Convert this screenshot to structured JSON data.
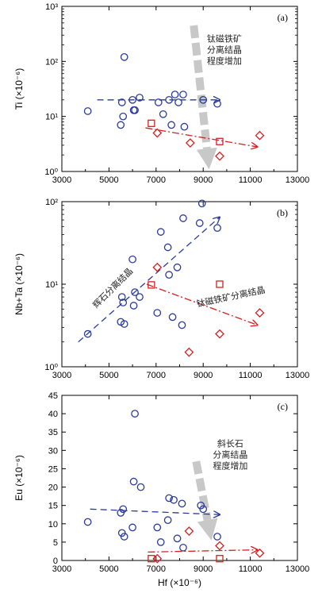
{
  "chart_data": [
    {
      "type": "scatter",
      "panel_label": "(a)",
      "ylabel": "Ti (×10⁻⁶)",
      "xlabel": "",
      "yscale": "log",
      "xlim": [
        3000,
        13000
      ],
      "ylim": [
        1,
        1000
      ],
      "yticks": [
        1,
        10,
        100,
        1000
      ],
      "ytick_labels": [
        "10⁰",
        "10¹",
        "10²",
        "10³"
      ],
      "xticks": [
        3000,
        5000,
        7000,
        9000,
        11000,
        13000
      ],
      "xtick_labels": [
        "3000",
        "5000",
        "7000",
        "9000",
        "11000",
        "13000"
      ],
      "colors": {
        "series1": "#2a3a9a",
        "series2": "#d42020",
        "series3": "#d42020",
        "fat_arrow": "#c8c8c8"
      },
      "series": [
        {
          "marker": "circle",
          "color": "#2a3a9a",
          "points": [
            [
              4100,
              12.5
            ],
            [
              5500,
              7
            ],
            [
              5550,
              18
            ],
            [
              5600,
              10
            ],
            [
              5650,
              120
            ],
            [
              6000,
              20
            ],
            [
              6050,
              13
            ],
            [
              6100,
              13
            ],
            [
              6300,
              22
            ],
            [
              7100,
              18
            ],
            [
              7300,
              11
            ],
            [
              7550,
              20
            ],
            [
              7650,
              7
            ],
            [
              7800,
              25
            ],
            [
              7950,
              18
            ],
            [
              8150,
              25
            ],
            [
              8200,
              6.5
            ],
            [
              9000,
              20
            ],
            [
              9600,
              17
            ]
          ]
        },
        {
          "marker": "square",
          "color": "#d42020",
          "points": [
            [
              6800,
              7.5
            ],
            [
              9700,
              3.5
            ]
          ]
        },
        {
          "marker": "diamond",
          "color": "#d42020",
          "points": [
            [
              7050,
              5
            ],
            [
              8450,
              3.3
            ],
            [
              9700,
              1.9
            ],
            [
              11400,
              4.5
            ]
          ]
        }
      ],
      "trend_lines": [
        {
          "style": "dashed",
          "color": "#2a3a9a",
          "from": [
            4500,
            20
          ],
          "to": [
            9700,
            20
          ]
        },
        {
          "style": "dashdot",
          "color": "#d42020",
          "from": [
            6550,
            6.2
          ],
          "to": [
            11300,
            2.8
          ]
        }
      ],
      "fat_arrow": {
        "from": [
          8600,
          450
        ],
        "to": [
          9250,
          1.1
        ]
      },
      "annotations": [
        {
          "lines": [
            "钛磁铁矿",
            "分离结晶",
            "程度增加"
          ],
          "x": 9900,
          "y": 230
        }
      ]
    },
    {
      "type": "scatter",
      "panel_label": "(b)",
      "ylabel": "Nb+Ta (×10⁻⁶)",
      "xlabel": "",
      "yscale": "log",
      "xlim": [
        3000,
        13000
      ],
      "ylim": [
        1,
        100
      ],
      "yticks": [
        1,
        10,
        100
      ],
      "ytick_labels": [
        "10⁰",
        "10¹",
        "10²"
      ],
      "xticks": [
        3000,
        5000,
        7000,
        9000,
        11000,
        13000
      ],
      "xtick_labels": [
        "3000",
        "5000",
        "7000",
        "9000",
        "11000",
        "13000"
      ],
      "colors": {
        "series1": "#2a3a9a",
        "series2": "#d42020",
        "series3": "#d42020"
      },
      "series": [
        {
          "marker": "circle",
          "color": "#2a3a9a",
          "points": [
            [
              4100,
              2.5
            ],
            [
              5500,
              3.5
            ],
            [
              5550,
              7
            ],
            [
              5600,
              6
            ],
            [
              5650,
              3.3
            ],
            [
              6000,
              20
            ],
            [
              6050,
              5.5
            ],
            [
              6100,
              8
            ],
            [
              6300,
              7
            ],
            [
              7050,
              4.5
            ],
            [
              7200,
              43
            ],
            [
              7500,
              28
            ],
            [
              7550,
              13
            ],
            [
              7700,
              4
            ],
            [
              7900,
              16
            ],
            [
              8100,
              3.2
            ],
            [
              8150,
              63
            ],
            [
              8850,
              55
            ],
            [
              8950,
              95
            ],
            [
              9600,
              48
            ]
          ]
        },
        {
          "marker": "square",
          "color": "#d42020",
          "points": [
            [
              6800,
              9.8
            ],
            [
              9700,
              10
            ]
          ]
        },
        {
          "marker": "diamond",
          "color": "#d42020",
          "points": [
            [
              7050,
              16
            ],
            [
              8400,
              1.5
            ],
            [
              9700,
              2.5
            ],
            [
              11400,
              4.5
            ]
          ]
        }
      ],
      "trend_lines": [
        {
          "style": "dashed",
          "color": "#2a3a9a",
          "from": [
            3700,
            2
          ],
          "to": [
            9700,
            65
          ]
        },
        {
          "style": "dashdot",
          "color": "#d42020",
          "from": [
            6600,
            10
          ],
          "to": [
            11300,
            3.2
          ]
        }
      ],
      "annotations": [
        {
          "lines": [
            "辉石分离结晶"
          ],
          "x": 5250,
          "y": 8.5,
          "rotate": -45
        },
        {
          "lines": [
            "钛磁铁矿分离结晶"
          ],
          "x": 10200,
          "y": 6.5,
          "rotate": -12
        }
      ]
    },
    {
      "type": "scatter",
      "panel_label": "(c)",
      "ylabel": "Eu (×10⁻⁶)",
      "xlabel": "Hf (×10⁻⁶)",
      "yscale": "linear",
      "xlim": [
        3000,
        13000
      ],
      "ylim": [
        0,
        45
      ],
      "yticks": [
        0,
        5,
        10,
        15,
        20,
        25,
        30,
        35,
        40,
        45
      ],
      "ytick_labels": [
        "0",
        "5",
        "10",
        "15",
        "20",
        "25",
        "30",
        "35",
        "40",
        "45"
      ],
      "xticks": [
        3000,
        5000,
        7000,
        9000,
        11000,
        13000
      ],
      "xtick_labels": [
        "3000",
        "5000",
        "7000",
        "9000",
        "11000",
        "13000"
      ],
      "colors": {
        "series1": "#2a3a9a",
        "series2": "#d42020",
        "series3": "#d42020",
        "fat_arrow": "#c8c8c8"
      },
      "series": [
        {
          "marker": "circle",
          "color": "#2a3a9a",
          "points": [
            [
              4100,
              10.5
            ],
            [
              5500,
              13
            ],
            [
              5550,
              7.5
            ],
            [
              5600,
              14
            ],
            [
              5650,
              6.5
            ],
            [
              6000,
              9
            ],
            [
              6050,
              21.5
            ],
            [
              6100,
              40
            ],
            [
              6350,
              20
            ],
            [
              7050,
              9
            ],
            [
              7200,
              5
            ],
            [
              7500,
              11
            ],
            [
              7550,
              17
            ],
            [
              7750,
              16.5
            ],
            [
              7900,
              6
            ],
            [
              8100,
              15.5
            ],
            [
              8150,
              3.5
            ],
            [
              8900,
              15
            ],
            [
              9000,
              14
            ],
            [
              9600,
              6.5
            ]
          ]
        },
        {
          "marker": "square",
          "color": "#d42020",
          "points": [
            [
              6800,
              0.5
            ],
            [
              9700,
              0.5
            ]
          ]
        },
        {
          "marker": "diamond",
          "color": "#d42020",
          "points": [
            [
              7050,
              0.5
            ],
            [
              8400,
              8
            ],
            [
              9700,
              4
            ],
            [
              11400,
              2
            ]
          ]
        }
      ],
      "trend_lines": [
        {
          "style": "dashed",
          "color": "#2a3a9a",
          "from": [
            4200,
            14
          ],
          "to": [
            9700,
            12.5
          ]
        },
        {
          "style": "dashdot",
          "color": "#d42020",
          "from": [
            6650,
            2.3
          ],
          "to": [
            11300,
            2.9
          ]
        }
      ],
      "fat_arrow": {
        "from": [
          8700,
          27
        ],
        "to": [
          9350,
          5.5
        ]
      },
      "annotations": [
        {
          "lines": [
            "斜长石",
            "分离结晶",
            "程度增加"
          ],
          "x": 10150,
          "y": 31
        }
      ]
    }
  ]
}
